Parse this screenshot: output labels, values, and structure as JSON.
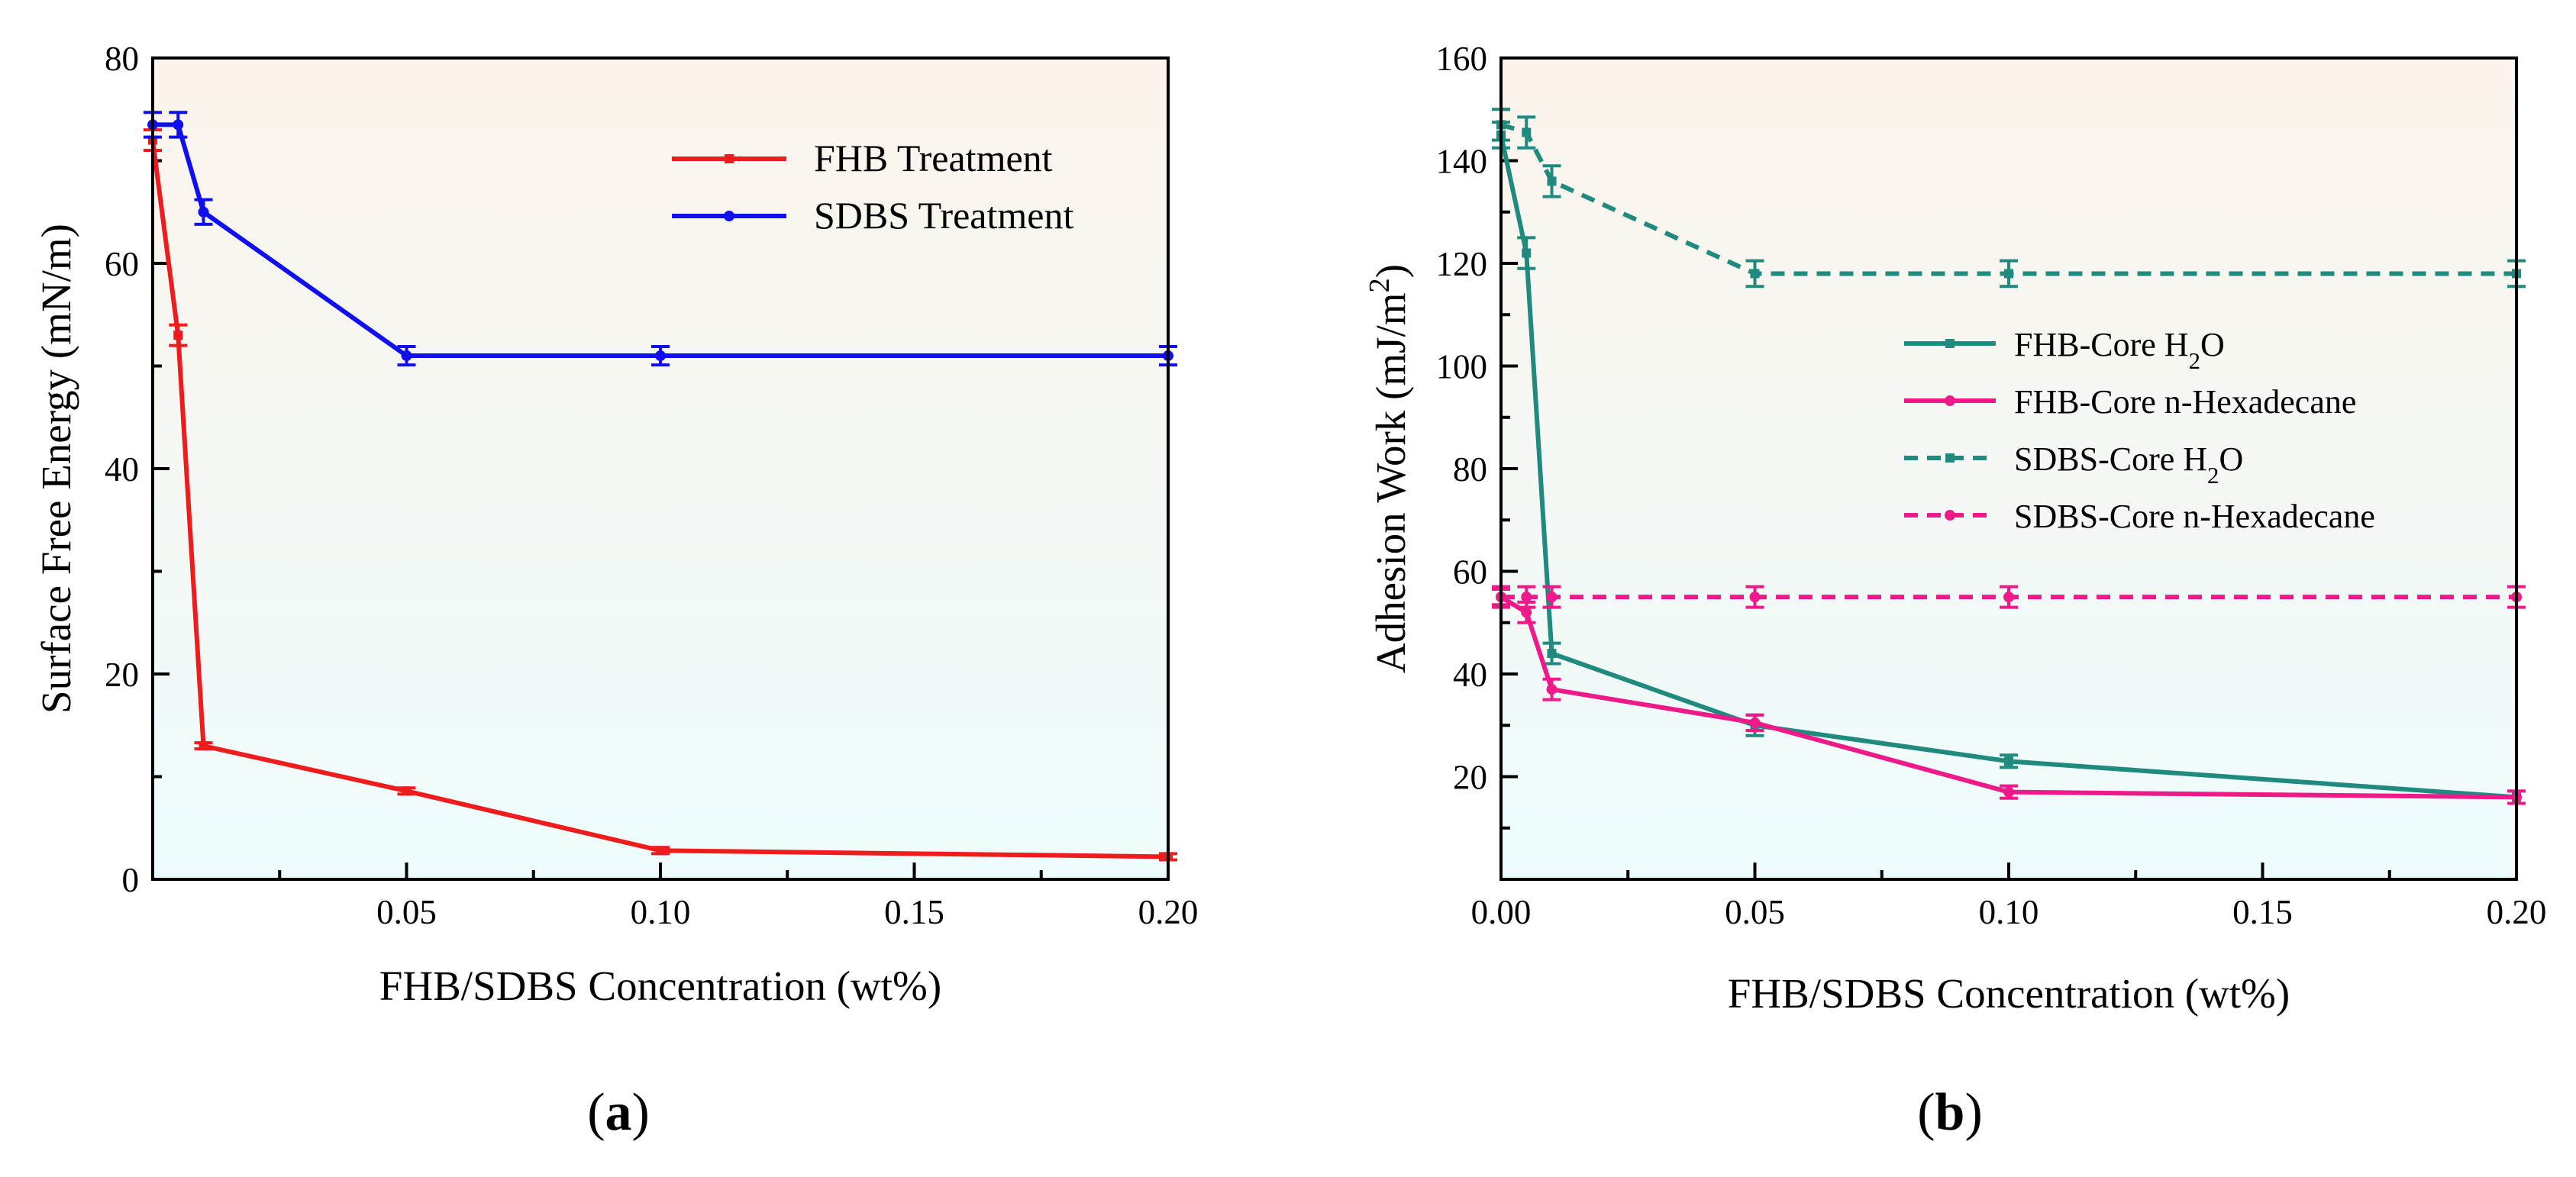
{
  "chart_data": [
    {
      "id": "a",
      "type": "line",
      "panel_label": "a",
      "xlabel": "FHB/SDBS Concentration (wt%)",
      "ylabel": "Surface Free Energy (mN/m)",
      "xlim": [
        0,
        0.2
      ],
      "ylim": [
        0,
        80
      ],
      "xticks": [
        0.05,
        0.1,
        0.15,
        0.2
      ],
      "xtick_labels": [
        "0.05",
        "0.10",
        "0.15",
        "0.20"
      ],
      "yticks": [
        0,
        20,
        40,
        60,
        80
      ],
      "ytick_labels": [
        "0",
        "20",
        "40",
        "60",
        "80"
      ],
      "legend_position": "top-right",
      "series": [
        {
          "name": "FHB Treatment",
          "color": "#ee1c1c",
          "style": "solid",
          "marker": "square",
          "x": [
            0,
            0.005,
            0.01,
            0.05,
            0.1,
            0.2
          ],
          "y": [
            72,
            53,
            13,
            8.6,
            2.8,
            2.2
          ],
          "err": [
            1.0,
            1.0,
            0.3,
            0.3,
            0.3,
            0.3
          ]
        },
        {
          "name": "SDBS Treatment",
          "color": "#1010ee",
          "style": "solid",
          "marker": "circle",
          "x": [
            0,
            0.005,
            0.01,
            0.05,
            0.1,
            0.2
          ],
          "y": [
            73.5,
            73.5,
            65,
            51,
            51,
            51
          ],
          "err": [
            1.2,
            1.2,
            1.2,
            0.9,
            0.9,
            0.9
          ]
        }
      ]
    },
    {
      "id": "b",
      "type": "line",
      "panel_label": "b",
      "xlabel": "FHB/SDBS Concentration (wt%)",
      "ylabel": "Adhesion Work (mJ/m²)",
      "xlim": [
        0,
        0.2
      ],
      "ylim": [
        0,
        160
      ],
      "xticks": [
        0,
        0.05,
        0.1,
        0.15,
        0.2
      ],
      "xtick_labels": [
        "0.00",
        "0.05",
        "0.10",
        "0.15",
        "0.20"
      ],
      "yticks": [
        20,
        40,
        60,
        80,
        100,
        120,
        140,
        160
      ],
      "ytick_labels": [
        "20",
        "40",
        "60",
        "80",
        "100",
        "120",
        "140",
        "160"
      ],
      "legend_position": "center-right",
      "series": [
        {
          "name": "FHB-Core H₂O",
          "color": "#1f8a7d",
          "style": "solid",
          "marker": "square",
          "x": [
            0,
            0.005,
            0.01,
            0.05,
            0.1,
            0.2
          ],
          "y": [
            145,
            122,
            44,
            30,
            23,
            16
          ],
          "err": [
            2.5,
            3.0,
            2.0,
            2.0,
            1.2,
            1.2
          ]
        },
        {
          "name": "FHB-Core n-Hexadecane",
          "color": "#ee1a8a",
          "style": "solid",
          "marker": "circle",
          "x": [
            0,
            0.005,
            0.01,
            0.05,
            0.1,
            0.2
          ],
          "y": [
            55,
            52,
            37,
            30.5,
            17,
            16
          ],
          "err": [
            1.5,
            2.0,
            2.0,
            1.5,
            1.2,
            1.2
          ]
        },
        {
          "name": "SDBS-Core H₂O",
          "color": "#1f8a7d",
          "style": "dashed",
          "marker": "square",
          "x": [
            0,
            0.005,
            0.01,
            0.05,
            0.1,
            0.2
          ],
          "y": [
            147,
            145.5,
            136,
            118,
            118,
            118
          ],
          "err": [
            3.0,
            3.0,
            3.0,
            2.5,
            2.5,
            2.5
          ]
        },
        {
          "name": "SDBS-Core n-Hexadecane",
          "color": "#ee1a8a",
          "style": "dashed",
          "marker": "circle",
          "x": [
            0,
            0.005,
            0.01,
            0.05,
            0.1,
            0.2
          ],
          "y": [
            55,
            55,
            55,
            55,
            55,
            55
          ],
          "err": [
            2.0,
            2.0,
            2.0,
            2.0,
            2.0,
            2.0
          ]
        }
      ]
    }
  ]
}
